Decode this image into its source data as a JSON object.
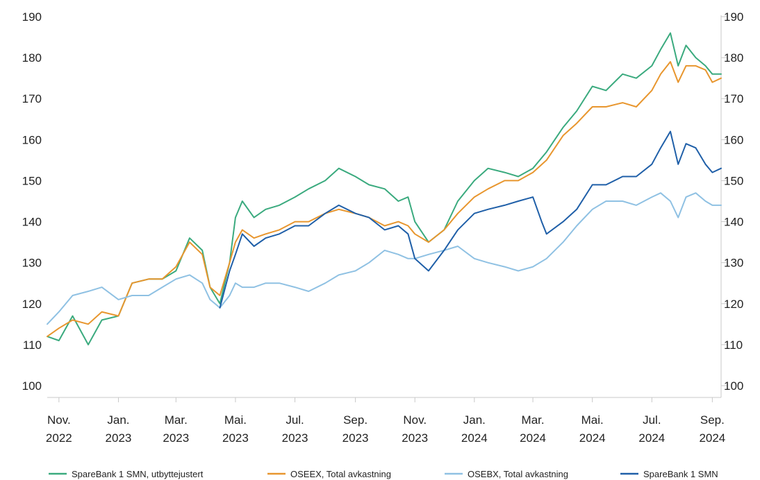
{
  "chart_data": {
    "type": "line",
    "title": "",
    "xlabel": "",
    "ylabel": "",
    "ylim": [
      100,
      190
    ],
    "yticks": [
      "100",
      "110",
      "120",
      "130",
      "140",
      "150",
      "160",
      "170",
      "180",
      "190"
    ],
    "xticks": [
      {
        "top": "Nov.",
        "bottom": "2022",
        "date": "2022-11-01"
      },
      {
        "top": "Jan.",
        "bottom": "2023",
        "date": "2023-01-01"
      },
      {
        "top": "Mar.",
        "bottom": "2023",
        "date": "2023-03-01"
      },
      {
        "top": "Mai.",
        "bottom": "2023",
        "date": "2023-05-01"
      },
      {
        "top": "Jul.",
        "bottom": "2023",
        "date": "2023-07-01"
      },
      {
        "top": "Sep.",
        "bottom": "2023",
        "date": "2023-09-01"
      },
      {
        "top": "Nov.",
        "bottom": "2023",
        "date": "2023-11-01"
      },
      {
        "top": "Jan.",
        "bottom": "2024",
        "date": "2024-01-01"
      },
      {
        "top": "Mar.",
        "bottom": "2024",
        "date": "2024-03-01"
      },
      {
        "top": "Mai.",
        "bottom": "2024",
        "date": "2024-05-01"
      },
      {
        "top": "Jul.",
        "bottom": "2024",
        "date": "2024-07-01"
      },
      {
        "top": "Sep.",
        "bottom": "2024",
        "date": "2024-09-01"
      }
    ],
    "xlim": [
      "2022-10-20",
      "2024-09-10"
    ],
    "legend_position": "bottom",
    "grid": false,
    "series": [
      {
        "name": "SpareBank 1 SMN, utbyttejustert",
        "color": "#3aaa7e",
        "points": [
          [
            "2022-10-20",
            112
          ],
          [
            "2022-11-01",
            111
          ],
          [
            "2022-11-15",
            117
          ],
          [
            "2022-12-01",
            110
          ],
          [
            "2022-12-15",
            116
          ],
          [
            "2023-01-01",
            117
          ],
          [
            "2023-01-15",
            125
          ],
          [
            "2023-02-01",
            126
          ],
          [
            "2023-02-15",
            126
          ],
          [
            "2023-03-01",
            128
          ],
          [
            "2023-03-15",
            136
          ],
          [
            "2023-03-28",
            133
          ],
          [
            "2023-04-05",
            124
          ],
          [
            "2023-04-15",
            120
          ],
          [
            "2023-04-25",
            130
          ],
          [
            "2023-05-01",
            141
          ],
          [
            "2023-05-08",
            145
          ],
          [
            "2023-05-20",
            141
          ],
          [
            "2023-06-01",
            143
          ],
          [
            "2023-06-15",
            144
          ],
          [
            "2023-07-01",
            146
          ],
          [
            "2023-07-15",
            148
          ],
          [
            "2023-08-01",
            150
          ],
          [
            "2023-08-15",
            153
          ],
          [
            "2023-09-01",
            151
          ],
          [
            "2023-09-15",
            149
          ],
          [
            "2023-10-01",
            148
          ],
          [
            "2023-10-15",
            145
          ],
          [
            "2023-10-25",
            146
          ],
          [
            "2023-11-01",
            140
          ],
          [
            "2023-11-15",
            135
          ],
          [
            "2023-12-01",
            138
          ],
          [
            "2023-12-15",
            145
          ],
          [
            "2024-01-01",
            150
          ],
          [
            "2024-01-15",
            153
          ],
          [
            "2024-02-01",
            152
          ],
          [
            "2024-02-15",
            151
          ],
          [
            "2024-03-01",
            153
          ],
          [
            "2024-03-15",
            157
          ],
          [
            "2024-04-01",
            163
          ],
          [
            "2024-04-15",
            167
          ],
          [
            "2024-05-01",
            173
          ],
          [
            "2024-05-15",
            172
          ],
          [
            "2024-06-01",
            176
          ],
          [
            "2024-06-15",
            175
          ],
          [
            "2024-07-01",
            178
          ],
          [
            "2024-07-10",
            182
          ],
          [
            "2024-07-20",
            186
          ],
          [
            "2024-07-28",
            178
          ],
          [
            "2024-08-05",
            183
          ],
          [
            "2024-08-15",
            180
          ],
          [
            "2024-08-25",
            178
          ],
          [
            "2024-09-01",
            176
          ],
          [
            "2024-09-10",
            176
          ]
        ]
      },
      {
        "name": "OSEEX, Total avkastning",
        "color": "#e8962e",
        "points": [
          [
            "2022-10-20",
            112
          ],
          [
            "2022-11-01",
            114
          ],
          [
            "2022-11-15",
            116
          ],
          [
            "2022-12-01",
            115
          ],
          [
            "2022-12-15",
            118
          ],
          [
            "2023-01-01",
            117
          ],
          [
            "2023-01-15",
            125
          ],
          [
            "2023-02-01",
            126
          ],
          [
            "2023-02-15",
            126
          ],
          [
            "2023-03-01",
            129
          ],
          [
            "2023-03-15",
            135
          ],
          [
            "2023-03-28",
            132
          ],
          [
            "2023-04-05",
            124
          ],
          [
            "2023-04-15",
            122
          ],
          [
            "2023-04-25",
            130
          ],
          [
            "2023-05-01",
            135
          ],
          [
            "2023-05-08",
            138
          ],
          [
            "2023-05-20",
            136
          ],
          [
            "2023-06-01",
            137
          ],
          [
            "2023-06-15",
            138
          ],
          [
            "2023-07-01",
            140
          ],
          [
            "2023-07-15",
            140
          ],
          [
            "2023-08-01",
            142
          ],
          [
            "2023-08-15",
            143
          ],
          [
            "2023-09-01",
            142
          ],
          [
            "2023-09-15",
            141
          ],
          [
            "2023-10-01",
            139
          ],
          [
            "2023-10-15",
            140
          ],
          [
            "2023-10-25",
            139
          ],
          [
            "2023-11-01",
            137
          ],
          [
            "2023-11-15",
            135
          ],
          [
            "2023-12-01",
            138
          ],
          [
            "2023-12-15",
            142
          ],
          [
            "2024-01-01",
            146
          ],
          [
            "2024-01-15",
            148
          ],
          [
            "2024-02-01",
            150
          ],
          [
            "2024-02-15",
            150
          ],
          [
            "2024-03-01",
            152
          ],
          [
            "2024-03-15",
            155
          ],
          [
            "2024-04-01",
            161
          ],
          [
            "2024-04-15",
            164
          ],
          [
            "2024-05-01",
            168
          ],
          [
            "2024-05-15",
            168
          ],
          [
            "2024-06-01",
            169
          ],
          [
            "2024-06-15",
            168
          ],
          [
            "2024-07-01",
            172
          ],
          [
            "2024-07-10",
            176
          ],
          [
            "2024-07-20",
            179
          ],
          [
            "2024-07-28",
            174
          ],
          [
            "2024-08-05",
            178
          ],
          [
            "2024-08-15",
            178
          ],
          [
            "2024-08-25",
            177
          ],
          [
            "2024-09-01",
            174
          ],
          [
            "2024-09-10",
            175
          ]
        ]
      },
      {
        "name": "OSEBX, Total avkastning",
        "color": "#8fc1e3",
        "points": [
          [
            "2022-10-20",
            115
          ],
          [
            "2022-11-01",
            118
          ],
          [
            "2022-11-15",
            122
          ],
          [
            "2022-12-01",
            123
          ],
          [
            "2022-12-15",
            124
          ],
          [
            "2023-01-01",
            121
          ],
          [
            "2023-01-15",
            122
          ],
          [
            "2023-02-01",
            122
          ],
          [
            "2023-02-15",
            124
          ],
          [
            "2023-03-01",
            126
          ],
          [
            "2023-03-15",
            127
          ],
          [
            "2023-03-28",
            125
          ],
          [
            "2023-04-05",
            121
          ],
          [
            "2023-04-15",
            119
          ],
          [
            "2023-04-25",
            122
          ],
          [
            "2023-05-01",
            125
          ],
          [
            "2023-05-08",
            124
          ],
          [
            "2023-05-20",
            124
          ],
          [
            "2023-06-01",
            125
          ],
          [
            "2023-06-15",
            125
          ],
          [
            "2023-07-01",
            124
          ],
          [
            "2023-07-15",
            123
          ],
          [
            "2023-08-01",
            125
          ],
          [
            "2023-08-15",
            127
          ],
          [
            "2023-09-01",
            128
          ],
          [
            "2023-09-15",
            130
          ],
          [
            "2023-10-01",
            133
          ],
          [
            "2023-10-15",
            132
          ],
          [
            "2023-10-25",
            131
          ],
          [
            "2023-11-01",
            131
          ],
          [
            "2023-11-15",
            132
          ],
          [
            "2023-12-01",
            133
          ],
          [
            "2023-12-15",
            134
          ],
          [
            "2024-01-01",
            131
          ],
          [
            "2024-01-15",
            130
          ],
          [
            "2024-02-01",
            129
          ],
          [
            "2024-02-15",
            128
          ],
          [
            "2024-03-01",
            129
          ],
          [
            "2024-03-15",
            131
          ],
          [
            "2024-04-01",
            135
          ],
          [
            "2024-04-15",
            139
          ],
          [
            "2024-05-01",
            143
          ],
          [
            "2024-05-15",
            145
          ],
          [
            "2024-06-01",
            145
          ],
          [
            "2024-06-15",
            144
          ],
          [
            "2024-07-01",
            146
          ],
          [
            "2024-07-10",
            147
          ],
          [
            "2024-07-20",
            145
          ],
          [
            "2024-07-28",
            141
          ],
          [
            "2024-08-05",
            146
          ],
          [
            "2024-08-15",
            147
          ],
          [
            "2024-08-25",
            145
          ],
          [
            "2024-09-01",
            144
          ],
          [
            "2024-09-10",
            144
          ]
        ]
      },
      {
        "name": "SpareBank 1 SMN",
        "color": "#1f5fa8",
        "points": [
          [
            "2023-04-15",
            119
          ],
          [
            "2023-04-25",
            128
          ],
          [
            "2023-05-01",
            132
          ],
          [
            "2023-05-08",
            137
          ],
          [
            "2023-05-20",
            134
          ],
          [
            "2023-06-01",
            136
          ],
          [
            "2023-06-15",
            137
          ],
          [
            "2023-07-01",
            139
          ],
          [
            "2023-07-15",
            139
          ],
          [
            "2023-08-01",
            142
          ],
          [
            "2023-08-15",
            144
          ],
          [
            "2023-09-01",
            142
          ],
          [
            "2023-09-15",
            141
          ],
          [
            "2023-10-01",
            138
          ],
          [
            "2023-10-15",
            139
          ],
          [
            "2023-10-25",
            137
          ],
          [
            "2023-11-01",
            131
          ],
          [
            "2023-11-15",
            128
          ],
          [
            "2023-12-01",
            133
          ],
          [
            "2023-12-15",
            138
          ],
          [
            "2024-01-01",
            142
          ],
          [
            "2024-01-15",
            143
          ],
          [
            "2024-02-01",
            144
          ],
          [
            "2024-02-15",
            145
          ],
          [
            "2024-03-01",
            146
          ],
          [
            "2024-03-10",
            140
          ],
          [
            "2024-03-15",
            137
          ],
          [
            "2024-04-01",
            140
          ],
          [
            "2024-04-15",
            143
          ],
          [
            "2024-05-01",
            149
          ],
          [
            "2024-05-15",
            149
          ],
          [
            "2024-06-01",
            151
          ],
          [
            "2024-06-15",
            151
          ],
          [
            "2024-07-01",
            154
          ],
          [
            "2024-07-10",
            158
          ],
          [
            "2024-07-20",
            162
          ],
          [
            "2024-07-28",
            154
          ],
          [
            "2024-08-05",
            159
          ],
          [
            "2024-08-15",
            158
          ],
          [
            "2024-08-25",
            154
          ],
          [
            "2024-09-01",
            152
          ],
          [
            "2024-09-10",
            153
          ]
        ]
      }
    ]
  }
}
